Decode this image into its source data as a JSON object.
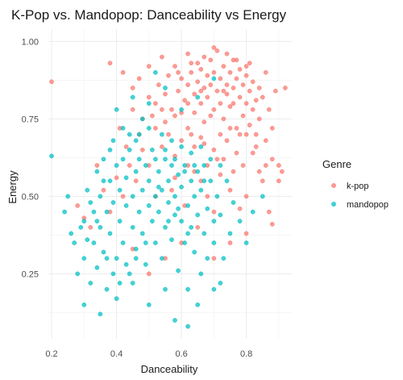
{
  "chart_data": {
    "type": "scatter",
    "title": "K-Pop vs. Mandopop: Danceability vs Energy",
    "xlabel": "Danceability",
    "ylabel": "Energy",
    "xlim": [
      0.19,
      0.94
    ],
    "ylim": [
      0.04,
      1.04
    ],
    "x_ticks": [
      0.2,
      0.4,
      0.6,
      0.8
    ],
    "x_tick_labels": [
      "0.2",
      "0.4",
      "0.6",
      "0.8"
    ],
    "y_ticks": [
      0.25,
      0.5,
      0.75,
      1.0
    ],
    "y_tick_labels": [
      "0.25",
      "0.50",
      "0.75",
      "1.00"
    ],
    "grid": true,
    "legend": {
      "title": "Genre",
      "position": "right"
    },
    "series": [
      {
        "name": "k-pop",
        "color": "#F8766D",
        "points": [
          [
            0.2,
            0.87
          ],
          [
            0.38,
            0.93
          ],
          [
            0.42,
            0.9
          ],
          [
            0.45,
            0.85
          ],
          [
            0.47,
            0.88
          ],
          [
            0.48,
            0.75
          ],
          [
            0.5,
            0.92
          ],
          [
            0.52,
            0.8
          ],
          [
            0.53,
            0.86
          ],
          [
            0.54,
            0.95
          ],
          [
            0.55,
            0.83
          ],
          [
            0.56,
            0.89
          ],
          [
            0.57,
            0.78
          ],
          [
            0.58,
            0.92
          ],
          [
            0.59,
            0.84
          ],
          [
            0.6,
            0.88
          ],
          [
            0.61,
            0.81
          ],
          [
            0.62,
            0.96
          ],
          [
            0.62,
            0.86
          ],
          [
            0.63,
            0.9
          ],
          [
            0.64,
            0.83
          ],
          [
            0.64,
            0.77
          ],
          [
            0.65,
            0.93
          ],
          [
            0.65,
            0.87
          ],
          [
            0.66,
            0.8
          ],
          [
            0.66,
            0.91
          ],
          [
            0.67,
            0.85
          ],
          [
            0.67,
            0.74
          ],
          [
            0.68,
            0.89
          ],
          [
            0.68,
            0.82
          ],
          [
            0.69,
            0.94
          ],
          [
            0.69,
            0.86
          ],
          [
            0.7,
            0.78
          ],
          [
            0.7,
            0.9
          ],
          [
            0.71,
            0.84
          ],
          [
            0.71,
            0.97
          ],
          [
            0.72,
            0.88
          ],
          [
            0.72,
            0.8
          ],
          [
            0.73,
            0.92
          ],
          [
            0.73,
            0.75
          ],
          [
            0.74,
            0.86
          ],
          [
            0.74,
            0.83
          ],
          [
            0.75,
            0.9
          ],
          [
            0.75,
            0.79
          ],
          [
            0.76,
            0.94
          ],
          [
            0.76,
            0.85
          ],
          [
            0.77,
            0.88
          ],
          [
            0.77,
            0.72
          ],
          [
            0.78,
            0.82
          ],
          [
            0.78,
            0.91
          ],
          [
            0.79,
            0.86
          ],
          [
            0.79,
            0.76
          ],
          [
            0.8,
            0.89
          ],
          [
            0.8,
            0.8
          ],
          [
            0.81,
            0.84
          ],
          [
            0.81,
            0.93
          ],
          [
            0.82,
            0.78
          ],
          [
            0.82,
            0.87
          ],
          [
            0.83,
            0.81
          ],
          [
            0.83,
            0.7
          ],
          [
            0.84,
            0.85
          ],
          [
            0.84,
            0.75
          ],
          [
            0.85,
            0.82
          ],
          [
            0.86,
            0.9
          ],
          [
            0.86,
            0.68
          ],
          [
            0.87,
            0.78
          ],
          [
            0.88,
            0.72
          ],
          [
            0.88,
            0.62
          ],
          [
            0.89,
            0.84
          ],
          [
            0.9,
            0.6
          ],
          [
            0.91,
            0.58
          ],
          [
            0.92,
            0.85
          ],
          [
            0.85,
            0.55
          ],
          [
            0.87,
            0.45
          ],
          [
            0.88,
            0.41
          ],
          [
            0.8,
            0.5
          ],
          [
            0.78,
            0.46
          ],
          [
            0.75,
            0.52
          ],
          [
            0.72,
            0.57
          ],
          [
            0.7,
            0.65
          ],
          [
            0.68,
            0.6
          ],
          [
            0.66,
            0.69
          ],
          [
            0.64,
            0.66
          ],
          [
            0.62,
            0.72
          ],
          [
            0.6,
            0.68
          ],
          [
            0.58,
            0.63
          ],
          [
            0.56,
            0.7
          ],
          [
            0.54,
            0.66
          ],
          [
            0.52,
            0.72
          ],
          [
            0.5,
            0.6
          ],
          [
            0.48,
            0.65
          ],
          [
            0.46,
            0.55
          ],
          [
            0.44,
            0.6
          ],
          [
            0.42,
            0.5
          ],
          [
            0.4,
            0.56
          ],
          [
            0.38,
            0.45
          ],
          [
            0.36,
            0.52
          ],
          [
            0.34,
            0.6
          ],
          [
            0.32,
            0.4
          ],
          [
            0.3,
            0.43
          ],
          [
            0.28,
            0.47
          ],
          [
            0.45,
            0.78
          ],
          [
            0.5,
            0.82
          ],
          [
            0.55,
            0.74
          ],
          [
            0.6,
            0.77
          ],
          [
            0.63,
            0.7
          ],
          [
            0.67,
            0.67
          ],
          [
            0.71,
            0.62
          ],
          [
            0.74,
            0.68
          ],
          [
            0.77,
            0.64
          ],
          [
            0.8,
            0.7
          ],
          [
            0.83,
            0.66
          ],
          [
            0.86,
            0.6
          ],
          [
            0.9,
            0.55
          ],
          [
            0.6,
            0.35
          ],
          [
            0.55,
            0.3
          ],
          [
            0.5,
            0.25
          ],
          [
            0.45,
            0.33
          ],
          [
            0.65,
            0.4
          ],
          [
            0.7,
            0.3
          ],
          [
            0.75,
            0.35
          ],
          [
            0.8,
            0.38
          ],
          [
            0.58,
            0.56
          ],
          [
            0.62,
            0.6
          ],
          [
            0.66,
            0.55
          ],
          [
            0.7,
            0.45
          ],
          [
            0.68,
            0.5
          ],
          [
            0.64,
            0.58
          ],
          [
            0.52,
            0.5
          ],
          [
            0.57,
            0.52
          ],
          [
            0.61,
            0.47
          ],
          [
            0.73,
            0.62
          ],
          [
            0.76,
            0.58
          ],
          [
            0.79,
            0.6
          ],
          [
            0.82,
            0.64
          ],
          [
            0.84,
            0.58
          ],
          [
            0.59,
            0.9
          ],
          [
            0.63,
            0.93
          ],
          [
            0.67,
            0.95
          ],
          [
            0.7,
            0.98
          ],
          [
            0.74,
            0.96
          ],
          [
            0.77,
            0.94
          ],
          [
            0.8,
            0.92
          ],
          [
            0.69,
            0.76
          ],
          [
            0.72,
            0.7
          ],
          [
            0.75,
            0.72
          ],
          [
            0.78,
            0.7
          ],
          [
            0.81,
            0.73
          ],
          [
            0.76,
            0.8
          ],
          [
            0.73,
            0.84
          ],
          [
            0.66,
            0.84
          ],
          [
            0.62,
            0.8
          ],
          [
            0.58,
            0.76
          ],
          [
            0.54,
            0.78
          ],
          [
            0.51,
            0.76
          ],
          [
            0.47,
            0.7
          ],
          [
            0.43,
            0.66
          ],
          [
            0.41,
            0.72
          ]
        ]
      },
      {
        "name": "mandopop",
        "color": "#00BFC4",
        "points": [
          [
            0.2,
            0.63
          ],
          [
            0.25,
            0.5
          ],
          [
            0.27,
            0.35
          ],
          [
            0.28,
            0.25
          ],
          [
            0.3,
            0.42
          ],
          [
            0.3,
            0.3
          ],
          [
            0.31,
            0.52
          ],
          [
            0.32,
            0.22
          ],
          [
            0.33,
            0.45
          ],
          [
            0.33,
            0.35
          ],
          [
            0.34,
            0.58
          ],
          [
            0.34,
            0.27
          ],
          [
            0.35,
            0.5
          ],
          [
            0.35,
            0.4
          ],
          [
            0.36,
            0.32
          ],
          [
            0.36,
            0.62
          ],
          [
            0.37,
            0.45
          ],
          [
            0.37,
            0.2
          ],
          [
            0.38,
            0.55
          ],
          [
            0.38,
            0.38
          ],
          [
            0.39,
            0.68
          ],
          [
            0.39,
            0.48
          ],
          [
            0.4,
            0.3
          ],
          [
            0.4,
            0.6
          ],
          [
            0.41,
            0.42
          ],
          [
            0.41,
            0.52
          ],
          [
            0.42,
            0.35
          ],
          [
            0.42,
            0.72
          ],
          [
            0.43,
            0.47
          ],
          [
            0.43,
            0.56
          ],
          [
            0.44,
            0.25
          ],
          [
            0.44,
            0.65
          ],
          [
            0.45,
            0.4
          ],
          [
            0.45,
            0.5
          ],
          [
            0.46,
            0.58
          ],
          [
            0.46,
            0.33
          ],
          [
            0.47,
            0.45
          ],
          [
            0.47,
            0.7
          ],
          [
            0.48,
            0.52
          ],
          [
            0.48,
            0.38
          ],
          [
            0.49,
            0.6
          ],
          [
            0.49,
            0.28
          ],
          [
            0.5,
            0.47
          ],
          [
            0.5,
            0.55
          ],
          [
            0.51,
            0.42
          ],
          [
            0.51,
            0.65
          ],
          [
            0.52,
            0.5
          ],
          [
            0.52,
            0.35
          ],
          [
            0.53,
            0.58
          ],
          [
            0.53,
            0.45
          ],
          [
            0.54,
            0.3
          ],
          [
            0.54,
            0.52
          ],
          [
            0.55,
            0.62
          ],
          [
            0.55,
            0.4
          ],
          [
            0.56,
            0.48
          ],
          [
            0.56,
            0.55
          ],
          [
            0.57,
            0.36
          ],
          [
            0.57,
            0.6
          ],
          [
            0.58,
            0.44
          ],
          [
            0.58,
            0.5
          ],
          [
            0.59,
            0.26
          ],
          [
            0.59,
            0.57
          ],
          [
            0.6,
            0.42
          ],
          [
            0.6,
            0.53
          ],
          [
            0.61,
            0.35
          ],
          [
            0.61,
            0.6
          ],
          [
            0.62,
            0.47
          ],
          [
            0.62,
            0.2
          ],
          [
            0.63,
            0.55
          ],
          [
            0.63,
            0.4
          ],
          [
            0.64,
            0.5
          ],
          [
            0.64,
            0.32
          ],
          [
            0.65,
            0.58
          ],
          [
            0.65,
            0.44
          ],
          [
            0.66,
            0.25
          ],
          [
            0.66,
            0.52
          ],
          [
            0.67,
            0.38
          ],
          [
            0.67,
            0.6
          ],
          [
            0.68,
            0.46
          ],
          [
            0.68,
            0.3
          ],
          [
            0.69,
            0.55
          ],
          [
            0.7,
            0.42
          ],
          [
            0.7,
            0.35
          ],
          [
            0.71,
            0.5
          ],
          [
            0.72,
            0.22
          ],
          [
            0.72,
            0.44
          ],
          [
            0.73,
            0.3
          ],
          [
            0.74,
            0.55
          ],
          [
            0.75,
            0.38
          ],
          [
            0.76,
            0.48
          ],
          [
            0.78,
            0.42
          ],
          [
            0.8,
            0.35
          ],
          [
            0.82,
            0.45
          ],
          [
            0.85,
            0.5
          ],
          [
            0.3,
            0.15
          ],
          [
            0.35,
            0.12
          ],
          [
            0.4,
            0.17
          ],
          [
            0.45,
            0.22
          ],
          [
            0.5,
            0.15
          ],
          [
            0.55,
            0.2
          ],
          [
            0.58,
            0.1
          ],
          [
            0.62,
            0.08
          ],
          [
            0.65,
            0.15
          ],
          [
            0.7,
            0.2
          ],
          [
            0.5,
            0.8
          ],
          [
            0.55,
            0.85
          ],
          [
            0.6,
            0.78
          ],
          [
            0.65,
            0.82
          ],
          [
            0.7,
            0.88
          ],
          [
            0.52,
            0.9
          ],
          [
            0.45,
            0.82
          ],
          [
            0.4,
            0.78
          ],
          [
            0.48,
            0.75
          ],
          [
            0.42,
            0.62
          ],
          [
            0.36,
            0.55
          ],
          [
            0.32,
            0.48
          ],
          [
            0.29,
            0.4
          ],
          [
            0.26,
            0.38
          ],
          [
            0.24,
            0.45
          ],
          [
            0.38,
            0.65
          ],
          [
            0.44,
            0.7
          ],
          [
            0.46,
            0.68
          ],
          [
            0.5,
            0.72
          ],
          [
            0.54,
            0.7
          ],
          [
            0.57,
            0.68
          ],
          [
            0.6,
            0.66
          ],
          [
            0.63,
            0.64
          ],
          [
            0.66,
            0.66
          ],
          [
            0.69,
            0.62
          ],
          [
            0.72,
            0.6
          ],
          [
            0.47,
            0.62
          ],
          [
            0.52,
            0.62
          ],
          [
            0.55,
            0.65
          ],
          [
            0.58,
            0.62
          ],
          [
            0.61,
            0.58
          ],
          [
            0.64,
            0.6
          ],
          [
            0.67,
            0.55
          ],
          [
            0.53,
            0.53
          ],
          [
            0.56,
            0.42
          ],
          [
            0.59,
            0.46
          ],
          [
            0.62,
            0.38
          ],
          [
            0.49,
            0.35
          ],
          [
            0.46,
            0.3
          ],
          [
            0.43,
            0.28
          ],
          [
            0.41,
            0.22
          ],
          [
            0.39,
            0.25
          ],
          [
            0.37,
            0.3
          ],
          [
            0.34,
            0.42
          ],
          [
            0.31,
            0.36
          ]
        ]
      }
    ]
  }
}
